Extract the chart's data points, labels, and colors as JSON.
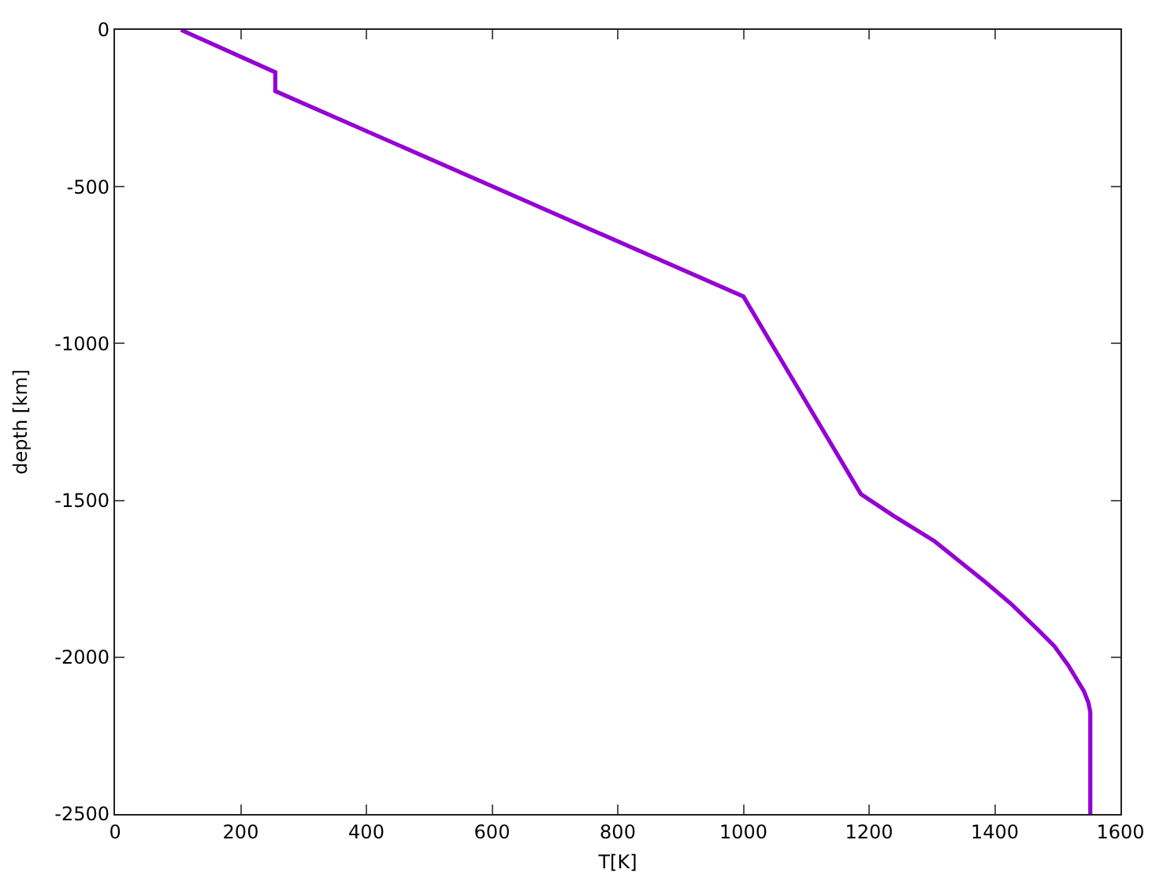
{
  "chart_data": {
    "type": "line",
    "xlabel": "T[K]",
    "ylabel": "depth [km]",
    "x": [
      105,
      255,
      255,
      1000,
      1187,
      1238,
      1304,
      1386,
      1427,
      1468,
      1495,
      1517,
      1542,
      1549,
      1552,
      1552
    ],
    "series": [
      {
        "color": "#9400d3",
        "values": [
          0,
          -135,
          -195,
          -850,
          -1480,
          -1548,
          -1630,
          -1762,
          -1832,
          -1911,
          -1965,
          -2026,
          -2109,
          -2145,
          -2175,
          -2500
        ]
      }
    ],
    "xlim": [
      0,
      1600
    ],
    "ylim": [
      -2500,
      0
    ],
    "xticks": [
      0,
      200,
      400,
      600,
      800,
      1000,
      1200,
      1400,
      1600
    ],
    "yticks": [
      0,
      -500,
      -1000,
      -1500,
      -2000,
      -2500
    ],
    "marker": "none",
    "line_style": "solid"
  }
}
